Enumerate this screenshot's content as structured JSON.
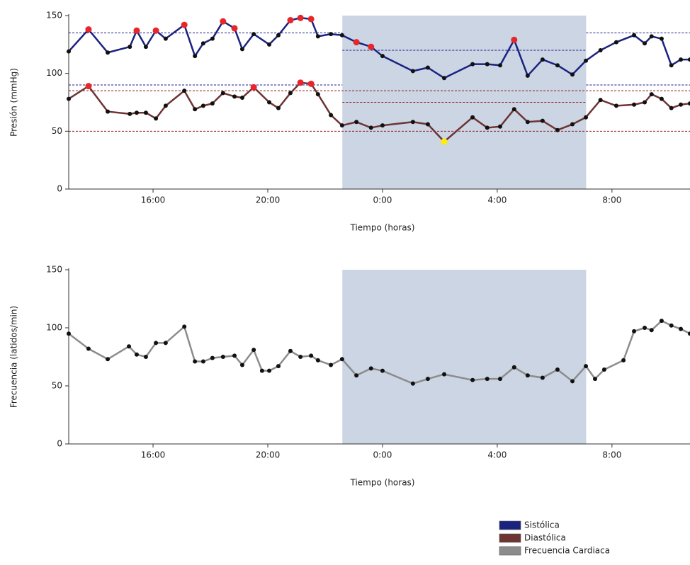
{
  "chart_data": [
    {
      "type": "line",
      "y_label": "Presión (mmHg)",
      "x_label": "Tiempo (horas)",
      "xlim": [
        13.06,
        34.72
      ],
      "ylim": [
        0,
        150
      ],
      "xticks": [
        {
          "value": 16,
          "label": "16:00"
        },
        {
          "value": 20,
          "label": "20:00"
        },
        {
          "value": 24,
          "label": "0:00"
        },
        {
          "value": 28,
          "label": "4:00"
        },
        {
          "value": 32,
          "label": "8:00"
        }
      ],
      "yticks": [
        0,
        50,
        100,
        150
      ],
      "night": [
        22.6,
        31.1
      ],
      "night_color": "#cbd5e3",
      "point_color": "#111111",
      "alert_color": "#e8262a",
      "low_color": "#ffee00",
      "reference_lines": [
        {
          "value": 135,
          "color": "#1a1a8c",
          "spans": [
            [
              13.06,
              22.6
            ],
            [
              31.1,
              34.72
            ]
          ]
        },
        {
          "value": 120,
          "color": "#1a1a8c",
          "spans": [
            [
              22.6,
              31.1
            ]
          ]
        },
        {
          "value": 90,
          "color": "#1a1a8c",
          "spans": [
            [
              13.06,
              22.6
            ],
            [
              31.1,
              34.72
            ]
          ]
        },
        {
          "value": 85,
          "color": "#8b2020",
          "spans": [
            [
              13.06,
              34.72
            ]
          ]
        },
        {
          "value": 75,
          "color": "#8b2020",
          "spans": [
            [
              22.6,
              31.1
            ]
          ]
        },
        {
          "value": 50,
          "color": "#8b2020",
          "spans": [
            [
              13.06,
              34.72
            ]
          ]
        }
      ],
      "x": [
        13.06,
        13.75,
        14.42,
        15.19,
        15.43,
        15.75,
        16.1,
        16.44,
        17.09,
        17.46,
        17.75,
        18.07,
        18.44,
        18.84,
        19.11,
        19.51,
        20.05,
        20.37,
        20.79,
        21.14,
        21.51,
        21.75,
        22.2,
        22.59,
        23.09,
        23.6,
        24,
        25.06,
        25.58,
        26.15,
        27.14,
        27.65,
        28.1,
        28.59,
        29.06,
        29.58,
        30.1,
        30.62,
        31.09,
        31.6,
        32.15,
        32.77,
        33.14,
        33.38,
        33.73,
        34.07,
        34.4,
        34.72
      ],
      "series": [
        {
          "name": "Sistólica",
          "color": "#1a237e",
          "day_limit": 135,
          "night_limit": 120,
          "values": [
            119,
            138,
            118,
            123,
            137,
            123,
            137,
            130,
            142,
            115,
            126,
            130,
            145,
            139,
            121,
            134,
            125,
            133,
            146,
            148,
            147,
            132,
            134,
            133,
            127,
            123,
            115,
            102,
            105,
            96,
            108,
            108,
            107,
            129,
            98,
            112,
            107,
            99,
            111,
            120,
            127,
            133,
            126,
            132,
            130,
            107,
            112,
            112
          ]
        },
        {
          "name": "Diastólica",
          "color": "#6e3434",
          "day_limit": 85,
          "night_limit": 75,
          "low_limit": 50,
          "values": [
            78,
            89,
            67,
            65,
            66,
            66,
            61,
            72,
            85,
            69,
            72,
            74,
            83,
            80,
            79,
            88,
            75,
            70,
            83,
            92,
            91,
            82,
            64,
            55,
            58,
            53,
            55,
            58,
            56,
            41,
            62,
            53,
            54,
            69,
            58,
            59,
            51,
            56,
            62,
            77,
            72,
            73,
            75,
            82,
            78,
            70,
            73,
            74
          ]
        }
      ]
    },
    {
      "type": "line",
      "y_label": "Frecuencia (latidos/min)",
      "x_label": "Tiempo (horas)",
      "xlim": [
        13.06,
        34.72
      ],
      "ylim": [
        0,
        150
      ],
      "xticks": [
        {
          "value": 16,
          "label": "16:00"
        },
        {
          "value": 20,
          "label": "20:00"
        },
        {
          "value": 24,
          "label": "0:00"
        },
        {
          "value": 28,
          "label": "4:00"
        },
        {
          "value": 32,
          "label": "8:00"
        }
      ],
      "yticks": [
        0,
        50,
        100,
        150
      ],
      "night": [
        22.6,
        31.1
      ],
      "night_color": "#cbd5e3",
      "point_color": "#111111",
      "legend": "bottom-right",
      "x": [
        13.06,
        13.75,
        14.42,
        15.16,
        15.43,
        15.75,
        16.1,
        16.44,
        17.09,
        17.46,
        17.75,
        18.07,
        18.44,
        18.84,
        19.11,
        19.51,
        19.8,
        20.05,
        20.37,
        20.79,
        21.14,
        21.51,
        21.75,
        22.2,
        22.59,
        23.09,
        23.6,
        24,
        25.06,
        25.58,
        26.15,
        27.14,
        27.65,
        28.1,
        28.59,
        29.06,
        29.58,
        30.1,
        30.62,
        31.09,
        31.41,
        31.73,
        32.4,
        32.77,
        33.14,
        33.38,
        33.73,
        34.07,
        34.4,
        34.72
      ],
      "series": [
        {
          "name": "Frecuencia Cardiaca",
          "color": "#8c8c8c",
          "values": [
            95,
            82,
            73,
            84,
            77,
            75,
            87,
            87,
            101,
            71,
            71,
            74,
            75,
            76,
            68,
            81,
            63,
            63,
            67,
            80,
            75,
            76,
            72,
            68,
            73,
            59,
            65,
            63,
            52,
            56,
            60,
            55,
            56,
            56,
            66,
            59,
            57,
            64,
            54,
            67,
            56,
            64,
            72,
            97,
            100,
            98,
            106,
            102,
            99,
            95
          ]
        }
      ]
    }
  ]
}
